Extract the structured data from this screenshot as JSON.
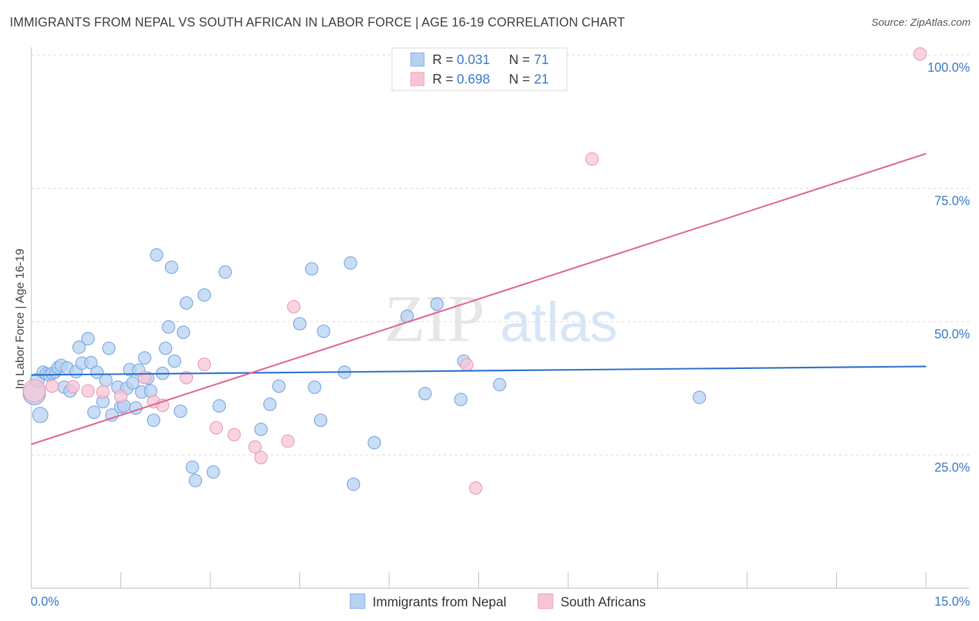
{
  "title": "IMMIGRANTS FROM NEPAL VS SOUTH AFRICAN IN LABOR FORCE | AGE 16-19 CORRELATION CHART",
  "source": "Source: ZipAtlas.com",
  "watermark": {
    "zip": "ZIP",
    "atlas": "atlas"
  },
  "colors": {
    "nepal_fill": "#b7d1f2",
    "nepal_stroke": "#7aa7e0",
    "nepal_line": "#2a6fcf",
    "sa_fill": "#f7c6d6",
    "sa_stroke": "#ec9ab4",
    "sa_line": "#e06591",
    "value_text": "#3a78c9",
    "grid": "#d8d8d8"
  },
  "stats_legend": [
    {
      "r_label": "R =",
      "r_value": "0.031",
      "n_label": "N =",
      "n_value": "71"
    },
    {
      "r_label": "R =",
      "r_value": "0.698",
      "n_label": "N =",
      "n_value": "21"
    }
  ],
  "chart_data": {
    "type": "scatter",
    "title": "IMMIGRANTS FROM NEPAL VS SOUTH AFRICAN IN LABOR FORCE | AGE 16-19 CORRELATION CHART",
    "xlabel": "",
    "ylabel": "In Labor Force | Age 16-19",
    "xlim": [
      0,
      15
    ],
    "ylim": [
      0,
      100
    ],
    "x_tick_labels": {
      "min": "0.0%",
      "max": "15.0%"
    },
    "y_ticks": [
      {
        "value": 25,
        "label": "25.0%"
      },
      {
        "value": 50,
        "label": "50.0%"
      },
      {
        "value": 75,
        "label": "75.0%"
      },
      {
        "value": 100,
        "label": "100.0%"
      }
    ],
    "grid": true,
    "legend_position": "bottom-center",
    "series": [
      {
        "name": "Immigrants from Nepal",
        "trend": {
          "x": [
            0,
            15
          ],
          "y": [
            40.0,
            41.6
          ]
        },
        "points": [
          [
            0.05,
            36.5,
            16
          ],
          [
            0.1,
            39,
            10
          ],
          [
            0.15,
            32.5,
            11
          ],
          [
            0.2,
            40.5,
            9
          ],
          [
            0.25,
            40.2,
            9
          ],
          [
            0.3,
            40,
            9
          ],
          [
            0.35,
            40.3,
            9
          ],
          [
            0.4,
            40.4,
            8
          ],
          [
            0.45,
            41.4,
            9
          ],
          [
            0.5,
            41.8,
            9
          ],
          [
            0.55,
            37.7,
            9
          ],
          [
            0.6,
            41.3,
            9
          ],
          [
            0.65,
            37,
            9
          ],
          [
            0.75,
            40.6,
            9
          ],
          [
            0.8,
            45.2,
            9
          ],
          [
            0.85,
            42.2,
            9
          ],
          [
            0.95,
            46.8,
            9
          ],
          [
            1.0,
            42.3,
            9
          ],
          [
            1.05,
            33,
            9
          ],
          [
            1.1,
            40.5,
            9
          ],
          [
            1.2,
            35,
            9
          ],
          [
            1.25,
            39,
            9
          ],
          [
            1.3,
            45,
            9
          ],
          [
            1.35,
            32.5,
            9
          ],
          [
            1.45,
            37.7,
            9
          ],
          [
            1.5,
            34,
            9
          ],
          [
            1.55,
            34.2,
            9
          ],
          [
            1.6,
            37.5,
            9
          ],
          [
            1.65,
            41,
            9
          ],
          [
            1.7,
            38.5,
            9
          ],
          [
            1.75,
            33.8,
            9
          ],
          [
            1.8,
            40.9,
            9
          ],
          [
            1.85,
            36.8,
            9
          ],
          [
            1.9,
            43.2,
            9
          ],
          [
            1.95,
            39.4,
            9
          ],
          [
            2.0,
            37,
            9
          ],
          [
            2.05,
            31.5,
            9
          ],
          [
            2.1,
            62.5,
            9
          ],
          [
            2.2,
            40.3,
            9
          ],
          [
            2.25,
            45,
            9
          ],
          [
            2.3,
            49,
            9
          ],
          [
            2.35,
            60.2,
            9
          ],
          [
            2.4,
            42.6,
            9
          ],
          [
            2.5,
            33.2,
            9
          ],
          [
            2.55,
            48,
            9
          ],
          [
            2.6,
            53.5,
            9
          ],
          [
            2.7,
            22.7,
            9
          ],
          [
            2.75,
            20.2,
            9
          ],
          [
            2.9,
            55,
            9
          ],
          [
            3.05,
            21.8,
            9
          ],
          [
            3.15,
            34.2,
            9
          ],
          [
            3.25,
            59.3,
            9
          ],
          [
            3.85,
            29.8,
            9
          ],
          [
            4.0,
            34.5,
            9
          ],
          [
            4.15,
            37.9,
            9
          ],
          [
            4.5,
            49.6,
            9
          ],
          [
            4.7,
            59.9,
            9
          ],
          [
            4.75,
            37.7,
            9
          ],
          [
            4.85,
            31.5,
            9
          ],
          [
            4.9,
            48.2,
            9
          ],
          [
            5.25,
            40.5,
            9
          ],
          [
            5.35,
            61,
            9
          ],
          [
            5.4,
            19.5,
            9
          ],
          [
            5.75,
            27.3,
            9
          ],
          [
            6.3,
            51,
            9
          ],
          [
            6.6,
            36.5,
            9
          ],
          [
            6.8,
            53.3,
            9
          ],
          [
            7.2,
            35.4,
            9
          ],
          [
            7.25,
            42.6,
            9
          ],
          [
            7.85,
            38.2,
            9
          ],
          [
            11.2,
            35.8,
            9
          ]
        ]
      },
      {
        "name": "South Africans",
        "trend": {
          "x": [
            0,
            15
          ],
          "y": [
            27.0,
            81.5
          ]
        },
        "points": [
          [
            0.05,
            37,
            16
          ],
          [
            0.35,
            37.9,
            9
          ],
          [
            0.7,
            37.8,
            9
          ],
          [
            0.95,
            37,
            9
          ],
          [
            1.2,
            36.8,
            9
          ],
          [
            1.5,
            36,
            9
          ],
          [
            1.9,
            39.5,
            9
          ],
          [
            2.05,
            35,
            9
          ],
          [
            2.2,
            34.3,
            9
          ],
          [
            2.6,
            39.5,
            9
          ],
          [
            2.9,
            42,
            9
          ],
          [
            3.1,
            30.1,
            9
          ],
          [
            3.4,
            28.8,
            9
          ],
          [
            3.75,
            26.5,
            9
          ],
          [
            3.85,
            24.5,
            9
          ],
          [
            4.3,
            27.6,
            9
          ],
          [
            4.4,
            52.8,
            9
          ],
          [
            7.3,
            41.9,
            9
          ],
          [
            7.45,
            18.8,
            9
          ],
          [
            9.4,
            80.5,
            9
          ],
          [
            14.9,
            100.2,
            9
          ]
        ]
      }
    ]
  }
}
